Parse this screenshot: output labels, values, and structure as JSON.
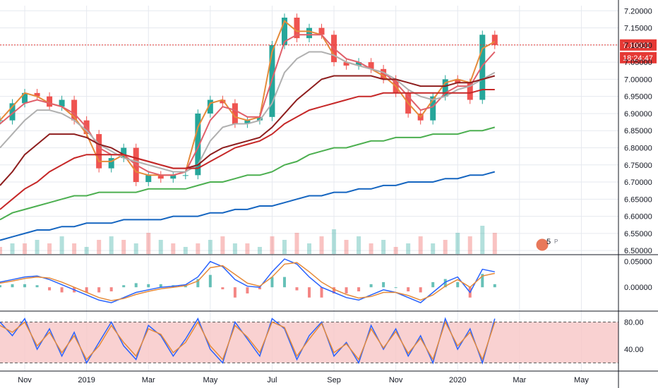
{
  "chart_data": {
    "type": "line",
    "main": {
      "yaxis": {
        "ylim": [
          6.49,
          7.215
        ],
        "ticks": [
          "7.20000",
          "7.15000",
          "7.10000",
          "7.05000",
          "7.00000",
          "6.95000",
          "6.90000",
          "6.85000",
          "6.80000",
          "6.75000",
          "6.70000",
          "6.65000",
          "6.60000",
          "6.55000",
          "6.50000"
        ],
        "tick_values": [
          7.2,
          7.15,
          7.1,
          7.05,
          7.0,
          6.95,
          6.9,
          6.85,
          6.8,
          6.75,
          6.7,
          6.65,
          6.6,
          6.55,
          6.5
        ]
      },
      "price_label": "7.10011",
      "price_value": 7.10011,
      "countdown_label": "18:24:47",
      "series": [
        {
          "color": "#e58a3a",
          "values": [
            6.88,
            6.92,
            6.96,
            6.95,
            6.93,
            6.92,
            6.89,
            6.84,
            6.76,
            6.76,
            6.78,
            6.73,
            6.72,
            6.72,
            6.72,
            6.73,
            6.86,
            6.93,
            6.94,
            6.89,
            6.88,
            6.89,
            7.08,
            7.17,
            7.14,
            7.14,
            7.13,
            7.07,
            7.05,
            7.04,
            7.03,
            7.01,
            6.98,
            6.93,
            6.89,
            6.94,
            6.99,
            7.0,
            6.99,
            7.09,
            7.11
          ]
        },
        {
          "color": "#e0606a",
          "values": [
            6.87,
            6.9,
            6.93,
            6.94,
            6.93,
            6.92,
            6.9,
            6.86,
            6.8,
            6.78,
            6.78,
            6.75,
            6.73,
            6.72,
            6.72,
            6.73,
            6.8,
            6.88,
            6.92,
            6.91,
            6.89,
            6.89,
            7.0,
            7.11,
            7.13,
            7.13,
            7.13,
            7.09,
            7.06,
            7.05,
            7.03,
            7.02,
            6.99,
            6.95,
            6.91,
            6.92,
            6.96,
            6.98,
            6.98,
            7.04,
            7.08
          ]
        },
        {
          "color": "#b0b0b0",
          "values": [
            6.8,
            6.84,
            6.88,
            6.91,
            6.91,
            6.9,
            6.88,
            6.85,
            6.81,
            6.79,
            6.77,
            6.76,
            6.75,
            6.74,
            6.73,
            6.73,
            6.75,
            6.82,
            6.86,
            6.87,
            6.87,
            6.88,
            6.93,
            7.02,
            7.06,
            7.08,
            7.08,
            7.07,
            7.05,
            7.04,
            7.03,
            7.02,
            7.0,
            6.97,
            6.95,
            6.94,
            6.95,
            6.97,
            6.98,
            7.0,
            7.02
          ]
        },
        {
          "color": "#8e1e1e",
          "values": [
            6.69,
            6.73,
            6.78,
            6.81,
            6.84,
            6.84,
            6.84,
            6.83,
            6.81,
            6.8,
            6.78,
            6.77,
            6.76,
            6.75,
            6.74,
            6.74,
            6.75,
            6.78,
            6.8,
            6.81,
            6.82,
            6.83,
            6.86,
            6.9,
            6.94,
            6.97,
            7.0,
            7.01,
            7.01,
            7.01,
            7.01,
            7.0,
            7.0,
            6.99,
            6.98,
            6.98,
            6.98,
            6.99,
            6.99,
            7.0,
            7.01
          ]
        },
        {
          "color": "#c62828",
          "values": [
            6.62,
            6.65,
            6.68,
            6.7,
            6.73,
            6.75,
            6.77,
            6.78,
            6.78,
            6.78,
            6.78,
            6.77,
            6.76,
            6.75,
            6.74,
            6.74,
            6.74,
            6.76,
            6.78,
            6.8,
            6.81,
            6.82,
            6.84,
            6.87,
            6.89,
            6.91,
            6.92,
            6.93,
            6.94,
            6.95,
            6.95,
            6.96,
            6.96,
            6.96,
            6.96,
            6.96,
            6.96,
            6.96,
            6.96,
            6.97,
            6.97
          ]
        },
        {
          "color": "#4caf50",
          "values": [
            6.59,
            6.61,
            6.62,
            6.63,
            6.64,
            6.65,
            6.66,
            6.66,
            6.67,
            6.67,
            6.67,
            6.67,
            6.68,
            6.68,
            6.68,
            6.68,
            6.69,
            6.7,
            6.7,
            6.71,
            6.72,
            6.72,
            6.73,
            6.75,
            6.76,
            6.78,
            6.79,
            6.8,
            6.8,
            6.81,
            6.82,
            6.82,
            6.83,
            6.83,
            6.83,
            6.84,
            6.84,
            6.84,
            6.85,
            6.85,
            6.86
          ]
        },
        {
          "color": "#1565c0",
          "values": [
            6.53,
            6.54,
            6.55,
            6.56,
            6.56,
            6.57,
            6.57,
            6.58,
            6.58,
            6.58,
            6.59,
            6.59,
            6.59,
            6.59,
            6.6,
            6.6,
            6.6,
            6.61,
            6.61,
            6.62,
            6.62,
            6.63,
            6.63,
            6.64,
            6.65,
            6.66,
            6.66,
            6.67,
            6.67,
            6.68,
            6.68,
            6.69,
            6.69,
            6.7,
            6.7,
            6.7,
            6.71,
            6.71,
            6.72,
            6.72,
            6.73
          ]
        }
      ],
      "candles": [
        6.88,
        6.93,
        6.96,
        6.95,
        6.92,
        6.94,
        6.88,
        6.84,
        6.74,
        6.77,
        6.8,
        6.7,
        6.72,
        6.71,
        6.72,
        6.72,
        6.9,
        6.94,
        6.93,
        6.87,
        6.88,
        6.89,
        7.1,
        7.18,
        7.12,
        7.15,
        7.13,
        7.05,
        7.04,
        7.05,
        7.03,
        7.0,
        6.96,
        6.9,
        6.88,
        6.95,
        7.0,
        6.99,
        6.94,
        7.13,
        7.1
      ]
    },
    "volume": [
      2,
      3,
      3,
      4,
      3,
      5,
      3,
      2,
      4,
      5,
      4,
      3,
      6,
      4,
      3,
      2,
      3,
      4,
      5,
      3,
      3,
      2,
      5,
      4,
      6,
      3,
      5,
      7,
      4,
      5,
      3,
      4,
      2,
      3,
      5,
      3,
      4,
      6,
      5,
      8,
      6
    ],
    "macd": {
      "ticks": [
        "0.05000",
        "0.00000"
      ],
      "tick_values": [
        0.05,
        0.0
      ],
      "ylim": [
        -0.045,
        0.062
      ],
      "macd_line": {
        "color": "#2962ff",
        "values": [
          0.01,
          0.015,
          0.02,
          0.022,
          0.015,
          0.005,
          -0.005,
          -0.015,
          -0.025,
          -0.03,
          -0.02,
          -0.01,
          -0.005,
          0.0,
          0.002,
          0.005,
          0.02,
          0.05,
          0.04,
          0.015,
          0.002,
          0.0,
          0.03,
          0.055,
          0.045,
          0.02,
          0.0,
          -0.01,
          -0.02,
          -0.025,
          -0.015,
          -0.005,
          -0.01,
          -0.02,
          -0.03,
          -0.01,
          0.01,
          0.02,
          -0.01,
          0.035,
          0.03
        ]
      },
      "signal_line": {
        "color": "#e58a3a",
        "values": [
          0.008,
          0.012,
          0.017,
          0.02,
          0.018,
          0.01,
          0.0,
          -0.01,
          -0.02,
          -0.026,
          -0.022,
          -0.014,
          -0.008,
          -0.003,
          0.0,
          0.003,
          0.012,
          0.038,
          0.042,
          0.025,
          0.008,
          0.002,
          0.02,
          0.045,
          0.048,
          0.03,
          0.01,
          -0.004,
          -0.014,
          -0.021,
          -0.018,
          -0.01,
          -0.01,
          -0.016,
          -0.025,
          -0.015,
          0.002,
          0.015,
          0.0,
          0.022,
          0.027
        ]
      }
    },
    "stochastic": {
      "ticks": [
        "80.00",
        "40.00"
      ],
      "tick_values": [
        80,
        40
      ],
      "ylim": [
        8,
        95
      ],
      "band": [
        20,
        80
      ],
      "k_line": {
        "color": "#2962ff",
        "values": [
          80,
          60,
          85,
          40,
          70,
          30,
          65,
          20,
          50,
          80,
          45,
          25,
          75,
          60,
          30,
          55,
          85,
          40,
          20,
          80,
          55,
          30,
          85,
          70,
          25,
          60,
          80,
          30,
          50,
          20,
          75,
          40,
          70,
          30,
          60,
          20,
          85,
          40,
          70,
          20,
          85
        ]
      },
      "d_line": {
        "color": "#e58a3a",
        "values": [
          75,
          65,
          80,
          45,
          65,
          35,
          60,
          25,
          45,
          75,
          50,
          30,
          70,
          62,
          35,
          50,
          80,
          45,
          25,
          75,
          58,
          35,
          80,
          72,
          30,
          55,
          78,
          35,
          48,
          25,
          70,
          42,
          66,
          34,
          56,
          25,
          80,
          45,
          65,
          25,
          80
        ]
      }
    },
    "xaxis": {
      "ticks": [
        "Nov",
        "2019",
        "Mar",
        "May",
        "Jul",
        "Sep",
        "Nov",
        "2020",
        "Mar",
        "May"
      ],
      "tick_index": [
        2,
        7,
        12,
        17,
        22,
        27,
        32,
        37,
        42,
        47
      ],
      "x_max_index": 50
    }
  },
  "overlay": {
    "timeframe_badge": "5",
    "marker_glyph": "P"
  },
  "colors": {
    "price_line": "#e53935",
    "price_badge": "#e53935",
    "countdown_badge": "#e53935",
    "pane_border": "#131722",
    "grid": "#e6e9ef",
    "up_candle": "#26a69a",
    "down_candle": "#ef5350",
    "band_fill": "#f7c6c6"
  }
}
